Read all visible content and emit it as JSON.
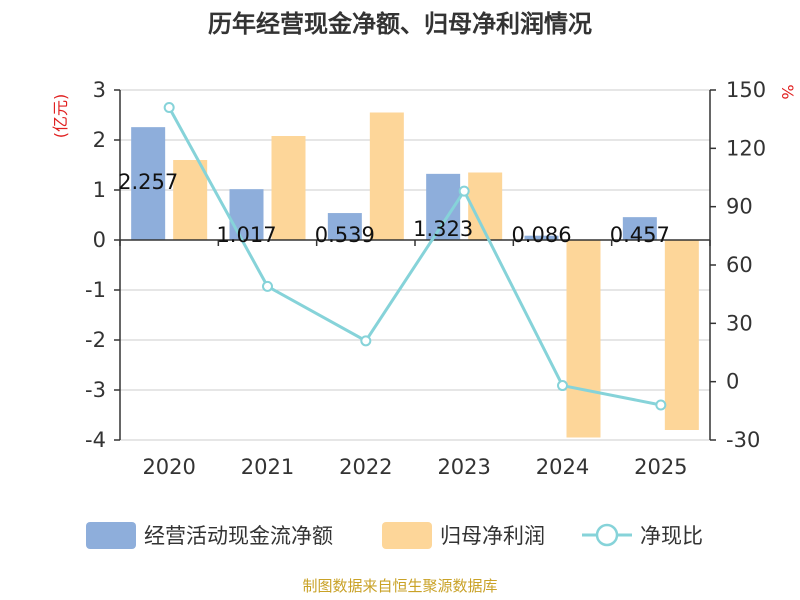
{
  "chart_data": {
    "type": "bar+line",
    "title": "历年经营现金净额、归母净利润情况",
    "categories": [
      "2020",
      "2021",
      "2022",
      "2023",
      "2024",
      "2025"
    ],
    "series": [
      {
        "name": "经营活动现金流净额",
        "type": "bar",
        "axis": "left",
        "color": "#8eaedb",
        "values": [
          2.257,
          1.017,
          0.539,
          1.323,
          0.086,
          0.457
        ],
        "labels": [
          "2.257",
          "1.017",
          "0.539",
          "1.323",
          "0.086",
          "0.457"
        ]
      },
      {
        "name": "归母净利润",
        "type": "bar",
        "axis": "left",
        "color": "#fdd699",
        "values": [
          1.6,
          2.08,
          2.55,
          1.35,
          -3.95,
          -3.8
        ]
      },
      {
        "name": "净现比",
        "type": "line",
        "axis": "right",
        "color": "#86d3d9",
        "values": [
          141,
          49,
          21,
          98,
          -2,
          -12
        ]
      }
    ],
    "y_left": {
      "unit": "(亿元)",
      "min": -4,
      "max": 3,
      "ticks": [
        3,
        2,
        1,
        0,
        -1,
        -2,
        -3,
        -4
      ]
    },
    "y_right": {
      "unit": "%",
      "min": -30,
      "max": 150,
      "ticks": [
        150,
        120,
        90,
        60,
        30,
        0,
        -30
      ]
    },
    "legend_position": "bottom",
    "source": "制图数据来自恒生聚源数据库"
  },
  "colors": {
    "axis": "#333333",
    "grid": "#cccccc",
    "unit": "#e02020",
    "source": "#c9a227"
  }
}
